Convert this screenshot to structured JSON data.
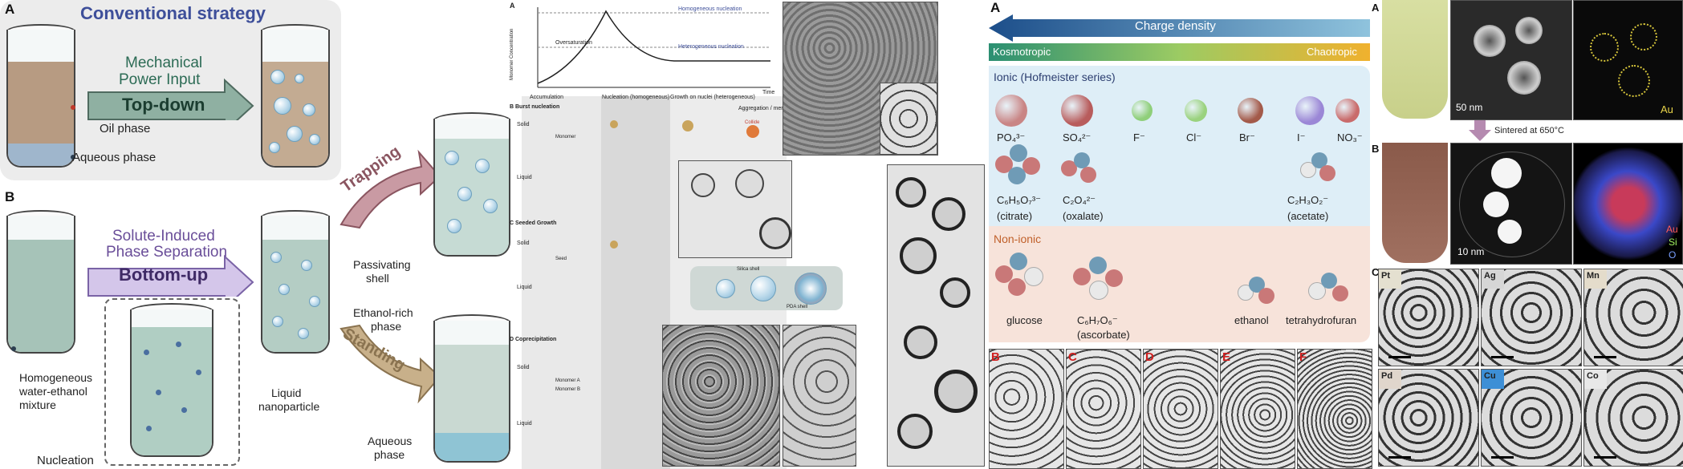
{
  "left_figure": {
    "panel_a_label": "A",
    "panel_b_label": "B",
    "conventional_title": "Conventional strategy",
    "mechanical_line1": "Mechanical",
    "mechanical_line2": "Power Input",
    "top_down": "Top-down",
    "oil_phase": "Oil phase",
    "aqueous_phase": "Aqueous phase",
    "solute_line1": "Solute-Induced",
    "solute_line2": "Phase Separation",
    "bottom_up": "Bottom-up",
    "homogeneous_line1": "Homogeneous",
    "homogeneous_line2": "water-ethanol",
    "homogeneous_line3": "mixture",
    "nucleation": "Nucleation",
    "liquid_np_line1": "Liquid",
    "liquid_np_line2": "nanoparticle",
    "trapping": "Trapping",
    "standing": "Standing",
    "passivating_line1": "Passivating",
    "passivating_line2": "shell",
    "ethanol_line1": "Ethanol-rich",
    "ethanol_line2": "phase",
    "aqueous_line1": "Aqueous",
    "aqueous_line2": "phase"
  },
  "middle_figure": {
    "label_a": "A",
    "homogeneous_nucleation": "Homogeneous nucleation",
    "heterogeneous_nucleation": "Heterogeneous nucleation",
    "supersaturation": "Oversaturation",
    "y_axis": "Monomer Concentration",
    "time": "Time",
    "stage1": "Accumulation",
    "stage2": "Nucleation (homogeneous)",
    "stage3": "Growth on nuclei (heterogeneous)",
    "stage4": "Aggregation / merging",
    "label_b": "B Burst nucleation",
    "label_c": "C Seeded Growth",
    "label_d": "D Coprecipitation",
    "solid": "Solid",
    "liquid": "Liquid",
    "monomer": "Monomer",
    "seed": "Seed",
    "monomer_a": "Monomer A",
    "monomer_b": "Monomer B",
    "collide": "Collide",
    "silica_shell": "Silica shell",
    "pda_shell": "PDA shell"
  },
  "ions_figure": {
    "label_a": "A",
    "charge_density": "Charge density",
    "kosmotropic": "Kosmotropic",
    "chaotropic": "Chaotropic",
    "ionic_header": "Ionic (Hofmeister series)",
    "non_ionic_header": "Non-ionic",
    "ions": [
      {
        "label": "PO₄³⁻",
        "color": "#c98585"
      },
      {
        "label": "SO₄²⁻",
        "color": "#b85c5c"
      },
      {
        "label": "F⁻",
        "color": "#8fcf7a"
      },
      {
        "label": "Cl⁻",
        "color": "#9ad27e"
      },
      {
        "label": "Br⁻",
        "color": "#a35a4a"
      },
      {
        "label": "I⁻",
        "color": "#9b87d6"
      },
      {
        "label": "NO₃⁻",
        "color": "#c96b6b"
      }
    ],
    "citrate_formula": "C₆H₅O₇³⁻",
    "citrate_name": "(citrate)",
    "oxalate_formula": "C₂O₄²⁻",
    "oxalate_name": "(oxalate)",
    "acetate_formula": "C₂H₃O₂⁻",
    "acetate_name": "(acetate)",
    "glucose": "glucose",
    "ascorbate_formula": "C₆H₇O₆⁻",
    "ascorbate_name": "(ascorbate)",
    "ethanol": "ethanol",
    "thf": "tetrahydrofuran",
    "bottom_labels": [
      "B",
      "C",
      "D",
      "E",
      "F"
    ]
  },
  "right_figure": {
    "label_a": "A",
    "label_b": "B",
    "label_c": "C",
    "scale_50nm": "50 nm",
    "scale_10nm": "10 nm",
    "au": "Au",
    "au2": "Au",
    "si": "Si",
    "o": "O",
    "sintered": "Sintered at 650°C",
    "metals": [
      "Pt",
      "Ag",
      "Mn",
      "Pd",
      "Cu",
      "Co"
    ]
  }
}
